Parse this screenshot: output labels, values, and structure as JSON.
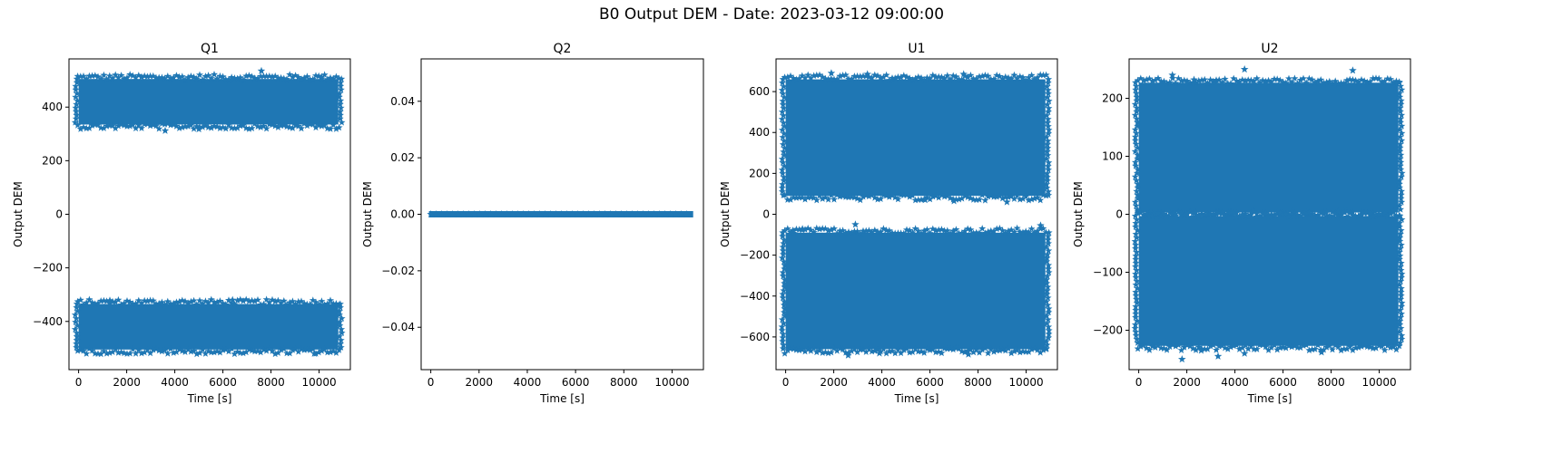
{
  "figure_title": "B0 Output DEM - Date: 2023-03-12 09:00:00",
  "colors": {
    "series": "#1f77b4",
    "axes": "#000000",
    "background": "#ffffff"
  },
  "chart_data": [
    {
      "type": "scatter",
      "marker": "star",
      "title": "Q1",
      "xlabel": "Time [s]",
      "ylabel": "Output DEM",
      "xlim": [
        -400,
        11300
      ],
      "ylim": [
        -580,
        580
      ],
      "xticks": [
        0,
        2000,
        4000,
        6000,
        8000,
        10000
      ],
      "xtick_labels": [
        "0",
        "2000",
        "4000",
        "6000",
        "8000",
        "10000"
      ],
      "yticks": [
        -400,
        -200,
        0,
        200,
        400
      ],
      "ytick_labels": [
        "−400",
        "−200",
        "0",
        "200",
        "400"
      ],
      "x_range": [
        0,
        10800
      ],
      "bands": [
        {
          "center": 420,
          "half_width": 85,
          "outliers": [
            [
              3600,
              312
            ],
            [
              5000,
              318
            ],
            [
              7600,
              535
            ],
            [
              10100,
              512
            ]
          ]
        },
        {
          "center": -420,
          "half_width": 85,
          "outliers": [
            [
              1300,
              -322
            ],
            [
              6400,
              -320
            ],
            [
              9800,
              -520
            ]
          ]
        }
      ]
    },
    {
      "type": "scatter",
      "marker": "star",
      "title": "Q2",
      "xlabel": "Time [s]",
      "ylabel": "Output DEM",
      "xlim": [
        -400,
        11300
      ],
      "ylim": [
        -0.055,
        0.055
      ],
      "xticks": [
        0,
        2000,
        4000,
        6000,
        8000,
        10000
      ],
      "xtick_labels": [
        "0",
        "2000",
        "4000",
        "6000",
        "8000",
        "10000"
      ],
      "yticks": [
        -0.04,
        -0.02,
        0.0,
        0.02,
        0.04
      ],
      "ytick_labels": [
        "−0.04",
        "−0.02",
        "0.00",
        "0.02",
        "0.04"
      ],
      "x_range": [
        0,
        10800
      ],
      "bands": [
        {
          "center": 0,
          "half_width": 0,
          "outliers": []
        }
      ]
    },
    {
      "type": "scatter",
      "marker": "star",
      "title": "U1",
      "xlabel": "Time [s]",
      "ylabel": "Output DEM",
      "xlim": [
        -400,
        11300
      ],
      "ylim": [
        -760,
        760
      ],
      "xticks": [
        0,
        2000,
        4000,
        6000,
        8000,
        10000
      ],
      "xtick_labels": [
        "0",
        "2000",
        "4000",
        "6000",
        "8000",
        "10000"
      ],
      "yticks": [
        -600,
        -400,
        -200,
        0,
        200,
        400,
        600
      ],
      "ytick_labels": [
        "−600",
        "−400",
        "−200",
        "0",
        "200",
        "400",
        "600"
      ],
      "x_range": [
        0,
        10800
      ],
      "bands": [
        {
          "center": 375,
          "half_width": 285,
          "outliers": [
            [
              1900,
              690
            ],
            [
              3400,
              685
            ],
            [
              7400,
              685
            ],
            [
              5800,
              70
            ],
            [
              7000,
              65
            ],
            [
              9200,
              60
            ]
          ]
        },
        {
          "center": -375,
          "half_width": 285,
          "outliers": [
            [
              300,
              -80
            ],
            [
              700,
              -72
            ],
            [
              2900,
              -50
            ],
            [
              10600,
              -55
            ],
            [
              2600,
              -690
            ],
            [
              7600,
              -685
            ],
            [
              3900,
              -680
            ]
          ]
        }
      ]
    },
    {
      "type": "scatter",
      "marker": "star",
      "title": "U2",
      "xlabel": "Time [s]",
      "ylabel": "Output DEM",
      "xlim": [
        -400,
        11300
      ],
      "ylim": [
        -268,
        268
      ],
      "xticks": [
        0,
        2000,
        4000,
        6000,
        8000,
        10000
      ],
      "xtick_labels": [
        "0",
        "2000",
        "4000",
        "6000",
        "8000",
        "10000"
      ],
      "yticks": [
        -200,
        -100,
        0,
        100,
        200
      ],
      "ytick_labels": [
        "−200",
        "−100",
        "0",
        "100",
        "200"
      ],
      "x_range": [
        0,
        10800
      ],
      "bands": [
        {
          "center": 115,
          "half_width": 112,
          "outliers": [
            [
              1400,
              240
            ],
            [
              4400,
              250
            ],
            [
              8900,
              248
            ],
            [
              3200,
              228
            ],
            [
              2300,
              232
            ]
          ]
        },
        {
          "center": -115,
          "half_width": 112,
          "outliers": [
            [
              1800,
              -250
            ],
            [
              3300,
              -245
            ],
            [
              4400,
              -240
            ],
            [
              7600,
              -238
            ],
            [
              2600,
              -235
            ]
          ]
        }
      ]
    }
  ]
}
